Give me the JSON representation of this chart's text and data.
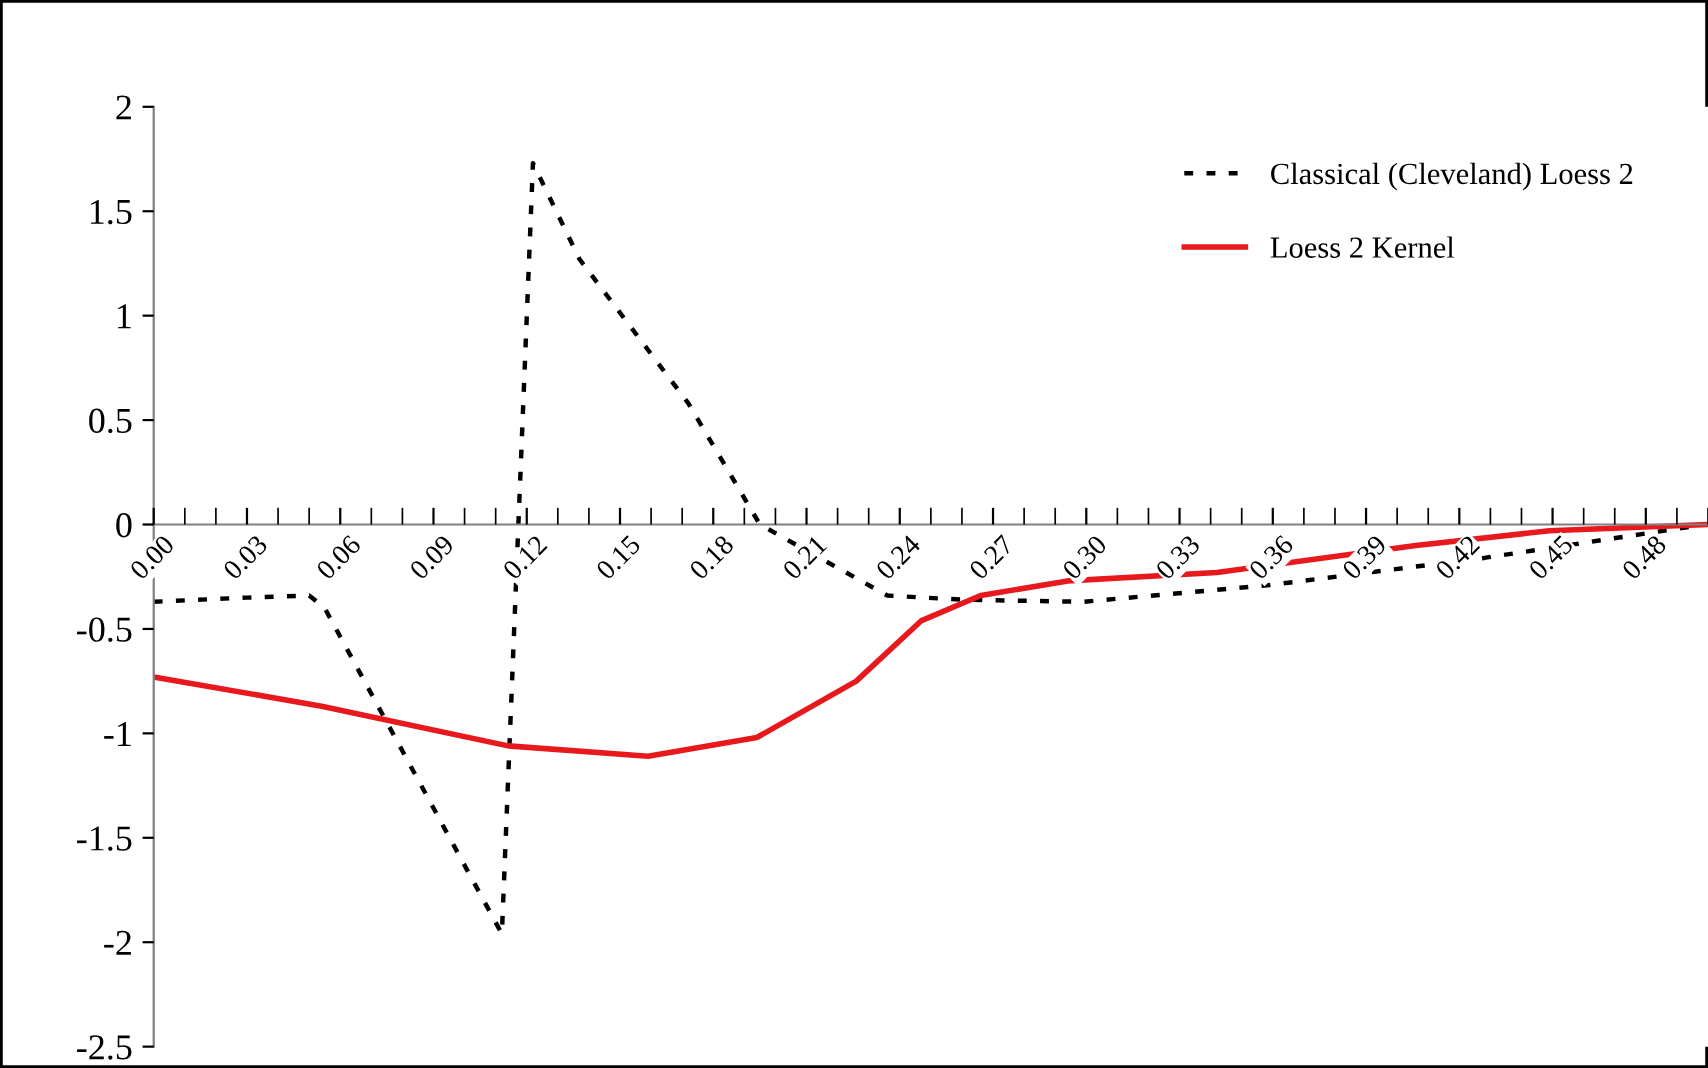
{
  "chart_data": {
    "type": "line",
    "xlim": [
      0,
      0.5
    ],
    "xticks": [
      {
        "value": 0,
        "label": "0.00"
      },
      0.03,
      0.06,
      0.09,
      0.12,
      0.15,
      0.18,
      0.21,
      0.24,
      0.27,
      {
        "value": 0.3,
        "label": "0.30"
      },
      0.33,
      0.36,
      0.39,
      0.42,
      0.45,
      0.48
    ],
    "ylim": [
      -2.5,
      2
    ],
    "yticks": [
      -2.5,
      -2,
      -1.5,
      -1,
      -0.5,
      0,
      0.5,
      1,
      1.5,
      2
    ],
    "grid": false,
    "legend": "top right",
    "series": [
      {
        "name": "Classical (Cleveland) Loess 2",
        "color": "#000000",
        "line_style": "dotted",
        "x": [
          0,
          0.03,
          0.05,
          0.055,
          0.112,
          0.122,
          0.137,
          0.172,
          0.195,
          0.236,
          0.26,
          0.299,
          0.359,
          0.428,
          0.499
        ],
        "values": [
          -0.37,
          -0.35,
          -0.34,
          -0.4,
          -1.96,
          1.73,
          1.27,
          0.58,
          0,
          -0.34,
          -0.36,
          -0.37,
          -0.29,
          -0.16,
          0
        ]
      },
      {
        "name": "Loess 2 Kernel",
        "color": "#e8191c",
        "line_style": "solid",
        "x": [
          0,
          0.054,
          0.114,
          0.159,
          0.194,
          0.226,
          0.247,
          0.266,
          0.294,
          0.342,
          0.406,
          0.449,
          0.5
        ],
        "values": [
          -0.73,
          -0.87,
          -1.06,
          -1.11,
          -1.02,
          -0.75,
          -0.46,
          -0.34,
          -0.27,
          -0.23,
          -0.1,
          -0.03,
          0
        ]
      }
    ]
  }
}
